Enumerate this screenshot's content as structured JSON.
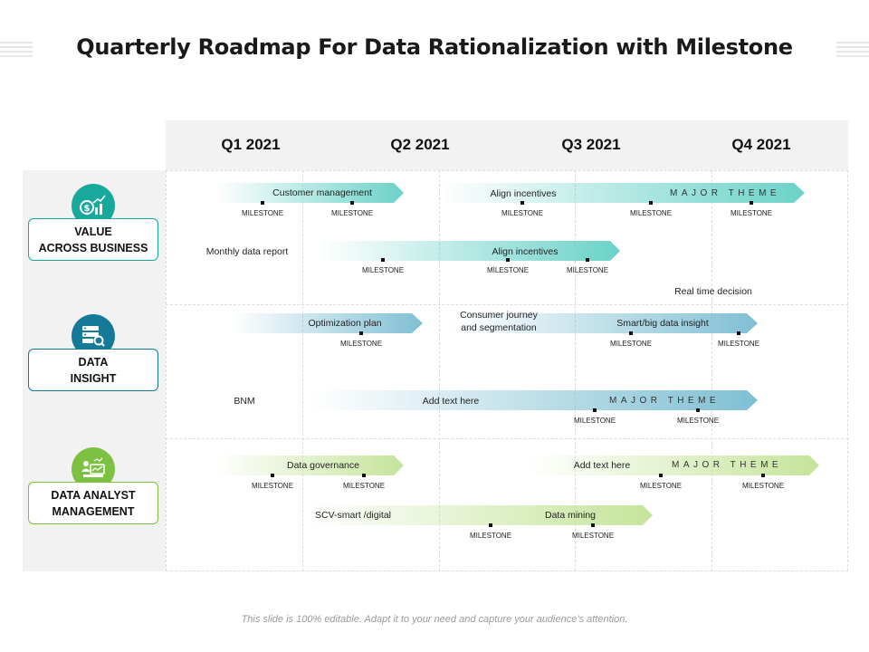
{
  "title": "Quarterly Roadmap For Data Rationalization with Milestone",
  "quarters": [
    "Q1 2021",
    "Q2 2021",
    "Q3 2021",
    "Q4 2021"
  ],
  "sections": [
    {
      "line1": "VALUE",
      "line2": "ACROSS BUSINESS",
      "icon": "dollar-growth-icon",
      "color": "#17a99b"
    },
    {
      "line1": "DATA",
      "line2": "INSIGHT",
      "icon": "server-search-icon",
      "color": "#157a98"
    },
    {
      "line1": "DATA ANALYST",
      "line2": "MANAGEMENT",
      "icon": "analyst-computer-icon",
      "color": "#7dc142"
    }
  ],
  "colors": {
    "teal": "#6ad2c8",
    "blue": "#7fbfd3",
    "green": "#c5e49b"
  },
  "milestone_label": "MILESTONE",
  "major_theme": "MAJOR THEME",
  "rows": {
    "r1": {
      "label_a": "Customer management",
      "label_b": "Align incentives"
    },
    "r2": {
      "outside": "Monthly data report",
      "label_a": "Align incentives"
    },
    "r3": {
      "outside": "Real time decision",
      "label_a": "Optimization plan",
      "label_b": "Consumer journey",
      "label_b2": "and segmentation",
      "label_c": "Smart/big data insight"
    },
    "r4": {
      "outside": "BNM",
      "label_a": "Add text here"
    },
    "r5": {
      "label_a": "Data governance",
      "label_b": "Add text here"
    },
    "r6": {
      "label_a": "SCV-smart /digital",
      "label_b": "Data mining"
    }
  },
  "footer": "This slide is 100% editable. Adapt it to your need and capture your audience’s attention."
}
